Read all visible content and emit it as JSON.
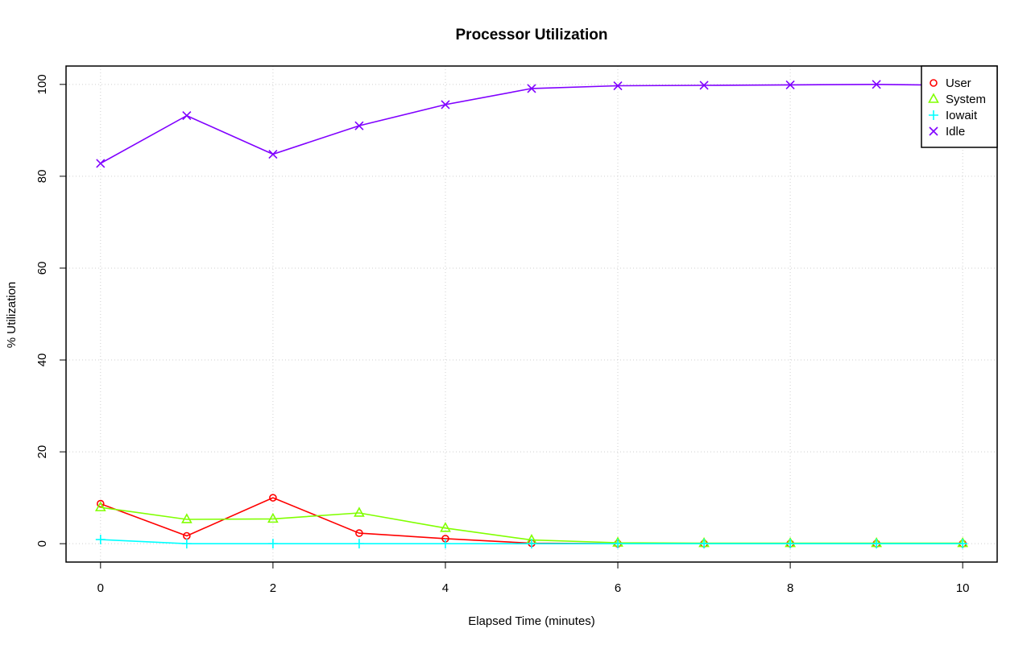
{
  "chart_data": {
    "type": "line",
    "title": "Processor Utilization",
    "xlabel": "Elapsed Time (minutes)",
    "ylabel": "% Utilization",
    "xlim": [
      -0.4,
      10.4
    ],
    "ylim": [
      -4,
      104
    ],
    "x_ticks": [
      0,
      2,
      4,
      6,
      8,
      10
    ],
    "y_ticks": [
      0,
      20,
      40,
      60,
      80,
      100
    ],
    "grid": true,
    "legend_position": "top-right",
    "x": [
      0,
      1,
      2,
      3,
      4,
      5,
      6,
      7,
      8,
      9,
      10
    ],
    "series": [
      {
        "name": "User",
        "color": "#ff0000",
        "marker": "circle",
        "values": [
          8.7,
          1.7,
          10.0,
          2.3,
          1.1,
          0.1,
          0.0,
          0.0,
          0.0,
          0.0,
          0.0
        ]
      },
      {
        "name": "System",
        "color": "#80ff00",
        "marker": "triangle",
        "values": [
          7.9,
          5.3,
          5.4,
          6.7,
          3.4,
          0.8,
          0.2,
          0.1,
          0.1,
          0.1,
          0.1
        ]
      },
      {
        "name": "Iowait",
        "color": "#00ffff",
        "marker": "plus",
        "values": [
          0.9,
          0.0,
          0.0,
          0.0,
          0.0,
          0.0,
          0.0,
          0.0,
          0.0,
          0.0,
          0.0
        ]
      },
      {
        "name": "Idle",
        "color": "#8000ff",
        "marker": "cross",
        "values": [
          82.8,
          93.2,
          84.8,
          91.0,
          95.6,
          99.1,
          99.7,
          99.8,
          99.9,
          100.0,
          99.8
        ]
      }
    ]
  }
}
